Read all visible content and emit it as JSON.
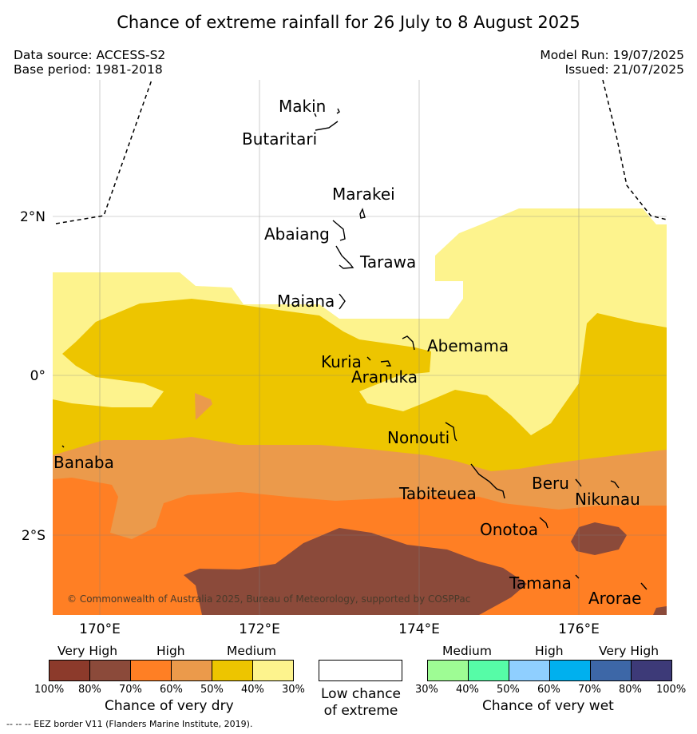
{
  "title": "Chance of extreme rainfall for 26 July to 8 August 2025",
  "data_source": "Data source: ACCESS-S2",
  "base_period": "Base period: 1981-2018",
  "model_run": "Model Run: 19/07/2025",
  "issued": "Issued: 21/07/2025",
  "copyright": "© Commonwealth of Australia 2025, Bureau of Meteorology, supported by COSPPac",
  "places": [
    "Makin",
    "Butaritari",
    "Marakei",
    "Abaiang",
    "Tarawa",
    "Maiana",
    "Abemama",
    "Kuria",
    "Aranuka",
    "Nonouti",
    "Banaba",
    "Tabiteuea",
    "Beru",
    "Nikunau",
    "Onotoa",
    "Tamana",
    "Arorae"
  ],
  "lat_ticks": [
    "2°N",
    "0°",
    "2°S"
  ],
  "lon_ticks": [
    "170°E",
    "172°E",
    "174°E",
    "176°E"
  ],
  "legend": {
    "dry": {
      "headers": [
        "Very High",
        "High",
        "Medium"
      ],
      "ticks": [
        "100%",
        "80%",
        "70%",
        "60%",
        "50%",
        "40%",
        "30%"
      ],
      "label": "Chance of very dry",
      "colors": [
        "#8c3a2b",
        "#8b4a3a",
        "#ff7f24",
        "#eb9a4b",
        "#edc500",
        "#fdf38d"
      ]
    },
    "neutral": {
      "label_line1": "Low chance",
      "label_line2": "of extreme",
      "color": "#ffffff"
    },
    "wet": {
      "headers": [
        "Medium",
        "High",
        "Very High"
      ],
      "ticks": [
        "30%",
        "40%",
        "50%",
        "60%",
        "70%",
        "80%",
        "100%"
      ],
      "label": "Chance of very wet",
      "colors": [
        "#9efc94",
        "#56fca7",
        "#8fcfff",
        "#00b0ee",
        "#3d67a7",
        "#3d3a78"
      ]
    }
  },
  "footnote": "--  --  -- EEZ border V11 (Flanders Marine Institute, 2019)."
}
